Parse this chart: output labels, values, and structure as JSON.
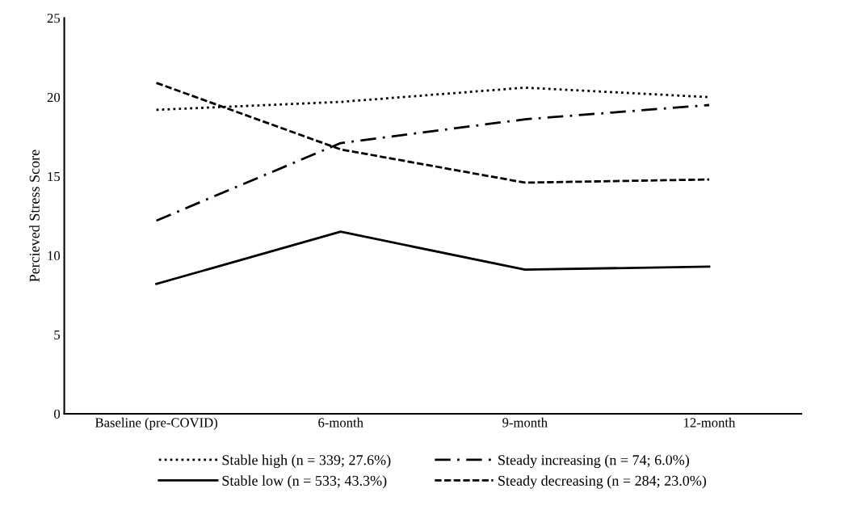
{
  "chart_data": {
    "type": "line",
    "ylabel": "Percieved Stress Score",
    "categories": [
      "Baseline (pre-COVID)",
      "6-month",
      "9-month",
      "12-month"
    ],
    "series": [
      {
        "name": "Stable high (n = 339; 27.6%)",
        "color": "#000000",
        "line_style": "dotted",
        "values": [
          19.2,
          19.7,
          20.6,
          20.0
        ]
      },
      {
        "name": "Stable low (n = 533; 43.3%)",
        "color": "#000000",
        "line_style": "solid",
        "values": [
          8.2,
          11.5,
          9.1,
          9.3
        ]
      },
      {
        "name": "Steady increasing (n = 74; 6.0%)",
        "color": "#000000",
        "line_style": "dashdot",
        "values": [
          12.2,
          17.1,
          18.6,
          19.5
        ]
      },
      {
        "name": "Steady decreasing (n = 284; 23.0%)",
        "color": "#000000",
        "line_style": "dashed",
        "values": [
          20.9,
          16.7,
          14.6,
          14.8
        ]
      }
    ],
    "ylim": [
      0,
      25
    ],
    "yticks": [
      0,
      5,
      10,
      15,
      20,
      25
    ],
    "grid": false,
    "legend": "bottom",
    "marker": "none"
  }
}
